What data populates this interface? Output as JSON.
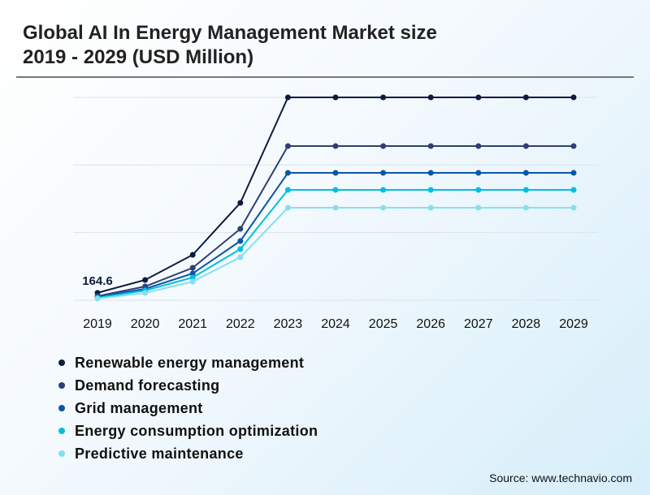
{
  "chart_data": {
    "type": "line",
    "title_line1": "Global AI In Energy Management Market size",
    "title_line2": "2019 - 2029 (USD Million)",
    "categories": [
      "2019",
      "2020",
      "2021",
      "2022",
      "2023",
      "2024",
      "2025",
      "2026",
      "2027",
      "2028",
      "2029"
    ],
    "ylim": [
      0,
      4500
    ],
    "grid": true,
    "annotation": "164.6",
    "legend_placement": "bottom",
    "series": [
      {
        "name": "Renewable energy management",
        "color": "#0d1b3e",
        "values": [
          164.6,
          450,
          1008,
          2160,
          4500,
          4500,
          4500,
          4500,
          4500,
          4500,
          4500
        ]
      },
      {
        "name": "Demand forecasting",
        "color": "#2e3f72",
        "values": [
          90,
          306,
          720,
          1584,
          3420,
          3420,
          3420,
          3420,
          3420,
          3420,
          3420
        ]
      },
      {
        "name": "Grid management",
        "color": "#0a56a5",
        "values": [
          72,
          252,
          594,
          1314,
          2826,
          2826,
          2826,
          2826,
          2826,
          2826,
          2826
        ]
      },
      {
        "name": "Energy consumption optimization",
        "color": "#00bfe0",
        "values": [
          54,
          216,
          504,
          1134,
          2448,
          2448,
          2448,
          2448,
          2448,
          2448,
          2448
        ]
      },
      {
        "name": "Predictive maintenance",
        "color": "#86dff0",
        "values": [
          36,
          162,
          414,
          954,
          2052,
          2052,
          2052,
          2052,
          2052,
          2052,
          2052
        ]
      }
    ]
  },
  "source": "Source: www.technavio.com"
}
